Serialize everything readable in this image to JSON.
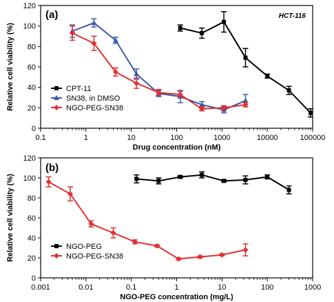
{
  "chart_data": [
    {
      "type": "line",
      "panel_label": "(a)",
      "annotation": "HCT-116",
      "xlabel": "Drug concentration (nM)",
      "ylabel": "Relative cell viability (%)",
      "xscale": "log",
      "xlim": [
        0.1,
        100000
      ],
      "ylim": [
        0,
        120
      ],
      "x_ticks": [
        0.1,
        1,
        10,
        100,
        1000,
        10000,
        100000
      ],
      "x_tick_labels": [
        "0.1",
        "1",
        "10",
        "100",
        "1000",
        "10000",
        "100000"
      ],
      "y_ticks": [
        0,
        20,
        40,
        60,
        80,
        100,
        120
      ],
      "y_tick_labels": [
        "0",
        "20",
        "40",
        "60",
        "80",
        "100",
        "120"
      ],
      "legend_position": "bottom-left",
      "series": [
        {
          "name": "CPT-11",
          "color": "#000000",
          "marker": "square",
          "x": [
            120,
            360,
            1100,
            3300,
            10000,
            30000,
            90000
          ],
          "y": [
            98,
            93,
            104,
            69,
            51,
            37,
            15
          ],
          "err": [
            3,
            5,
            10,
            9,
            2,
            4,
            4
          ]
        },
        {
          "name": "SN38, in DMSO",
          "color": "#3b5aa8",
          "marker": "triangle",
          "x": [
            0.5,
            1.5,
            4.5,
            13,
            40,
            120,
            360,
            1100,
            3300
          ],
          "y": [
            95,
            103,
            86,
            53,
            34,
            31,
            23,
            18,
            27
          ],
          "err": [
            6,
            4,
            3,
            5,
            3,
            6,
            3,
            3,
            6
          ]
        },
        {
          "name": "NGO-PEG-SN38",
          "color": "#e03030",
          "marker": "diamond",
          "x": [
            0.5,
            1.5,
            4.5,
            13,
            40,
            120,
            360,
            1100,
            3300
          ],
          "y": [
            93,
            83,
            55,
            44,
            35,
            33,
            19,
            20,
            23
          ],
          "err": [
            7,
            7,
            4,
            5,
            3,
            3,
            2,
            2,
            2
          ]
        }
      ]
    },
    {
      "type": "line",
      "panel_label": "(b)",
      "xlabel": "NGO-PEG concentration (mg/L)",
      "ylabel": "Relative cell viability (%)",
      "xscale": "log",
      "xlim": [
        0.001,
        1000
      ],
      "ylim": [
        0,
        120
      ],
      "x_ticks": [
        0.001,
        0.01,
        0.1,
        1,
        10,
        100,
        1000
      ],
      "x_tick_labels": [
        "0.001",
        "0.01",
        "0.1",
        "1",
        "10",
        "100",
        "1000"
      ],
      "y_ticks": [
        0,
        20,
        40,
        60,
        80,
        100,
        120
      ],
      "y_tick_labels": [
        "0",
        "20",
        "40",
        "60",
        "80",
        "100",
        "120"
      ],
      "legend_position": "bottom-left",
      "series": [
        {
          "name": "NGO-PEG",
          "color": "#000000",
          "marker": "square",
          "x": [
            0.13,
            0.4,
            1.2,
            3.6,
            11,
            33,
            100,
            300
          ],
          "y": [
            99,
            97,
            101,
            103,
            97,
            98,
            101,
            88
          ],
          "err": [
            4,
            3,
            1,
            3,
            1,
            4,
            2,
            4
          ]
        },
        {
          "name": "NGO-PEG-SN38",
          "color": "#e03030",
          "marker": "diamond",
          "x": [
            0.0015,
            0.0045,
            0.013,
            0.04,
            0.12,
            0.37,
            1.1,
            3.3,
            10,
            33
          ],
          "y": [
            96,
            84,
            54,
            45,
            36,
            32,
            19,
            21,
            23,
            28
          ],
          "err": [
            5,
            7,
            3,
            5,
            2,
            1,
            1,
            1,
            1,
            6
          ]
        }
      ]
    }
  ]
}
